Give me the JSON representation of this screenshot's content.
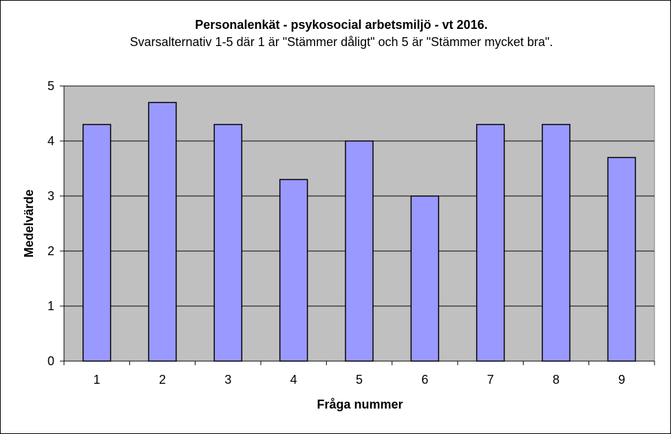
{
  "chart_data": {
    "type": "bar",
    "title": "Personalenkät - psykosocial arbetsmiljö - vt 2016.",
    "subtitle": "Svarsalternativ 1-5 där 1 är \"Stämmer dåligt\" och 5 är \"Stämmer mycket bra\".",
    "xlabel": "Fråga nummer",
    "ylabel": "Medelvärde",
    "categories": [
      "1",
      "2",
      "3",
      "4",
      "5",
      "6",
      "7",
      "8",
      "9"
    ],
    "values": [
      4.3,
      4.7,
      4.3,
      3.3,
      4.0,
      3.0,
      4.3,
      4.3,
      3.7
    ],
    "ylim": [
      0,
      5
    ],
    "yticks": [
      "0",
      "1",
      "2",
      "3",
      "4",
      "5"
    ],
    "grid": true,
    "legend": "none",
    "colors": {
      "bar_fill": "#9999ff",
      "bar_stroke": "#000000",
      "plot_background": "#c0c0c0",
      "gridline": "#000000"
    }
  }
}
